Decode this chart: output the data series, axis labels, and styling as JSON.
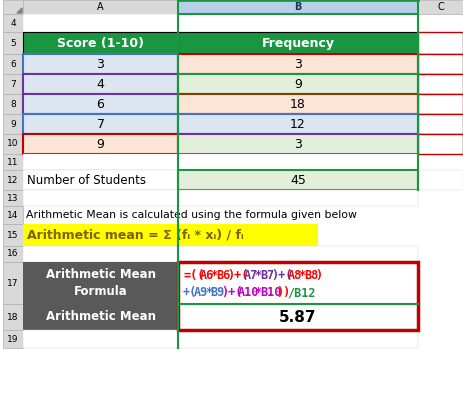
{
  "header_bg": "#1a9641",
  "score_col_header": "Score (1-10)",
  "freq_col_header": "Frequency",
  "scores": [
    3,
    4,
    6,
    7,
    9
  ],
  "frequencies": [
    3,
    9,
    18,
    12,
    3
  ],
  "score_bg_colors": [
    "#dce6f1",
    "#dce6f1",
    "#dce6f1",
    "#dce6f1",
    "#fce4d6"
  ],
  "freq_bg_colors": [
    "#fce4d6",
    "#e2efda",
    "#fce4d6",
    "#dce6f1",
    "#e2efda"
  ],
  "score_borders": [
    "#4472c4",
    "#7030a0",
    "#7030a0",
    "#4472c4",
    "#c00000"
  ],
  "freq_borders": [
    "#c00000",
    "#1a9641",
    "#833c00",
    "#4472c4",
    "#7030a0"
  ],
  "num_students_label": "Number of Students",
  "num_students_value": "45",
  "num_students_freq_bg": "#e2efda",
  "row14_text": "Arithmetic Mean is calculated using the formula given below",
  "row15_bg": "#ffff00",
  "formula_label": "Arithmetic Mean\nFormula",
  "formula_label_bg": "#595959",
  "formula_border": "#c00000",
  "mean_label": "Arithmetic Mean",
  "mean_label_bg": "#595959",
  "mean_value": "5.87",
  "mean_border": "#c00000",
  "col_header_bg": "#d9d9d9",
  "row_num_bg": "#d9d9d9",
  "bg_color": "#ffffff",
  "col_b_header_bg": "#c6d9f1",
  "col_b_header_color": "#17375e",
  "green_border": "#1a9641"
}
